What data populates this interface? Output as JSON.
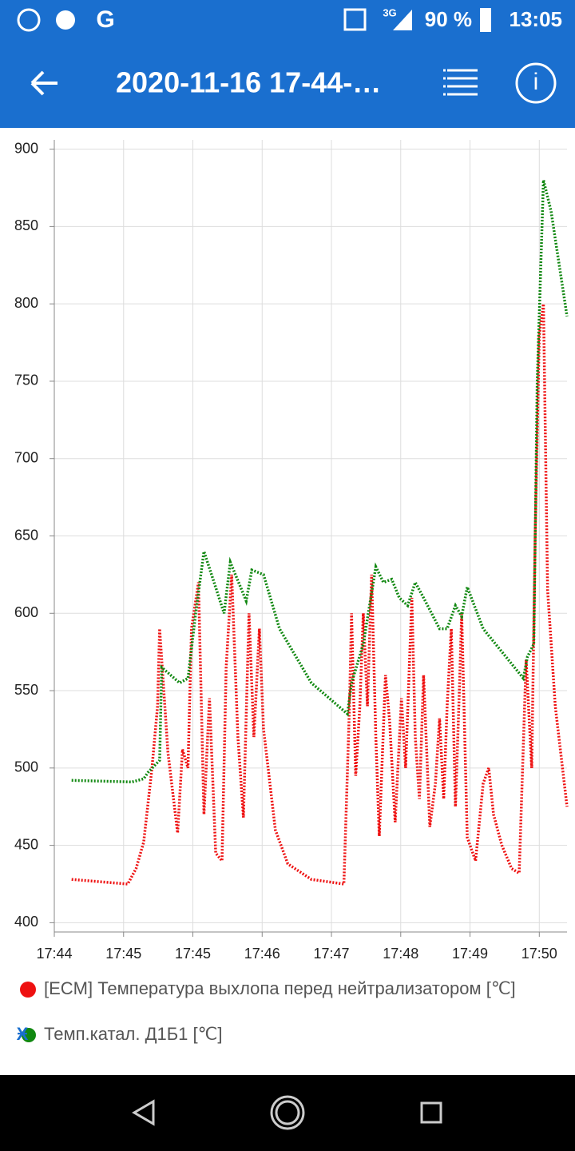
{
  "status_bar": {
    "network": "3G",
    "battery": "90 %",
    "time": "13:05"
  },
  "header": {
    "title": "2020-11-16 17-44-…"
  },
  "chart_data": {
    "type": "line",
    "xlim": [
      0,
      7.4
    ],
    "xticks": [
      {
        "value": 0,
        "label": "17:44"
      },
      {
        "value": 1,
        "label": "17:45"
      },
      {
        "value": 2,
        "label": "17:45"
      },
      {
        "value": 3,
        "label": "17:46"
      },
      {
        "value": 4,
        "label": "17:47"
      },
      {
        "value": 5,
        "label": "17:48"
      },
      {
        "value": 6,
        "label": "17:49"
      },
      {
        "value": 7,
        "label": "17:50"
      }
    ],
    "ylim": [
      394,
      906
    ],
    "yticks": [
      400,
      450,
      500,
      550,
      600,
      650,
      700,
      750,
      800,
      850,
      900
    ],
    "grid": true,
    "series": [
      {
        "name": "[ECM] Температура выхлопа перед нейтрализатором [℃]",
        "color": "#ee1111",
        "x": [
          0.25,
          1.06,
          1.18,
          1.29,
          1.41,
          1.49,
          1.52,
          1.64,
          1.78,
          1.85,
          1.93,
          1.98,
          2.08,
          2.16,
          2.24,
          2.33,
          2.42,
          2.48,
          2.56,
          2.65,
          2.73,
          2.81,
          2.88,
          2.96,
          3.02,
          3.19,
          3.37,
          3.71,
          4.18,
          4.26,
          4.29,
          4.35,
          4.41,
          4.46,
          4.52,
          4.58,
          4.64,
          4.69,
          4.78,
          4.84,
          4.92,
          5.01,
          5.07,
          5.16,
          5.21,
          5.27,
          5.33,
          5.42,
          5.5,
          5.56,
          5.62,
          5.67,
          5.73,
          5.79,
          5.85,
          5.88,
          5.96,
          6.08,
          6.19,
          6.27,
          6.34,
          6.46,
          6.6,
          6.71,
          6.81,
          6.89,
          6.94,
          7.0,
          7.06,
          7.12,
          7.23,
          7.4
        ],
        "values": [
          428,
          425,
          435,
          452,
          500,
          540,
          590,
          510,
          458,
          512,
          500,
          590,
          620,
          470,
          545,
          445,
          440,
          565,
          625,
          520,
          468,
          600,
          520,
          590,
          525,
          460,
          438,
          428,
          425,
          540,
          600,
          495,
          540,
          600,
          540,
          625,
          520,
          456,
          560,
          530,
          465,
          545,
          500,
          610,
          520,
          480,
          560,
          462,
          490,
          532,
          480,
          540,
          590,
          475,
          555,
          600,
          455,
          440,
          490,
          500,
          470,
          450,
          435,
          432,
          570,
          500,
          650,
          780,
          800,
          615,
          540,
          475
        ]
      },
      {
        "name": "Темп.катал. Д1Б1 [℃]",
        "color": "#118811",
        "x": [
          0.25,
          1.12,
          1.29,
          1.35,
          1.52,
          1.55,
          1.81,
          1.93,
          2.04,
          2.16,
          2.27,
          2.45,
          2.54,
          2.77,
          2.85,
          3.02,
          3.25,
          3.71,
          4.23,
          4.29,
          4.46,
          4.64,
          4.75,
          4.87,
          4.98,
          5.1,
          5.21,
          5.33,
          5.56,
          5.67,
          5.79,
          5.88,
          5.96,
          6.19,
          6.77,
          6.83,
          6.92,
          6.97,
          7.06,
          7.17,
          7.4
        ],
        "values": [
          492,
          491,
          493,
          497,
          505,
          565,
          555,
          558,
          600,
          640,
          625,
          600,
          633,
          608,
          628,
          625,
          590,
          555,
          535,
          555,
          580,
          630,
          620,
          622,
          610,
          605,
          620,
          610,
          590,
          590,
          605,
          598,
          617,
          590,
          558,
          572,
          580,
          750,
          880,
          860,
          792
        ]
      }
    ]
  },
  "legend_marker": "Ӿ"
}
